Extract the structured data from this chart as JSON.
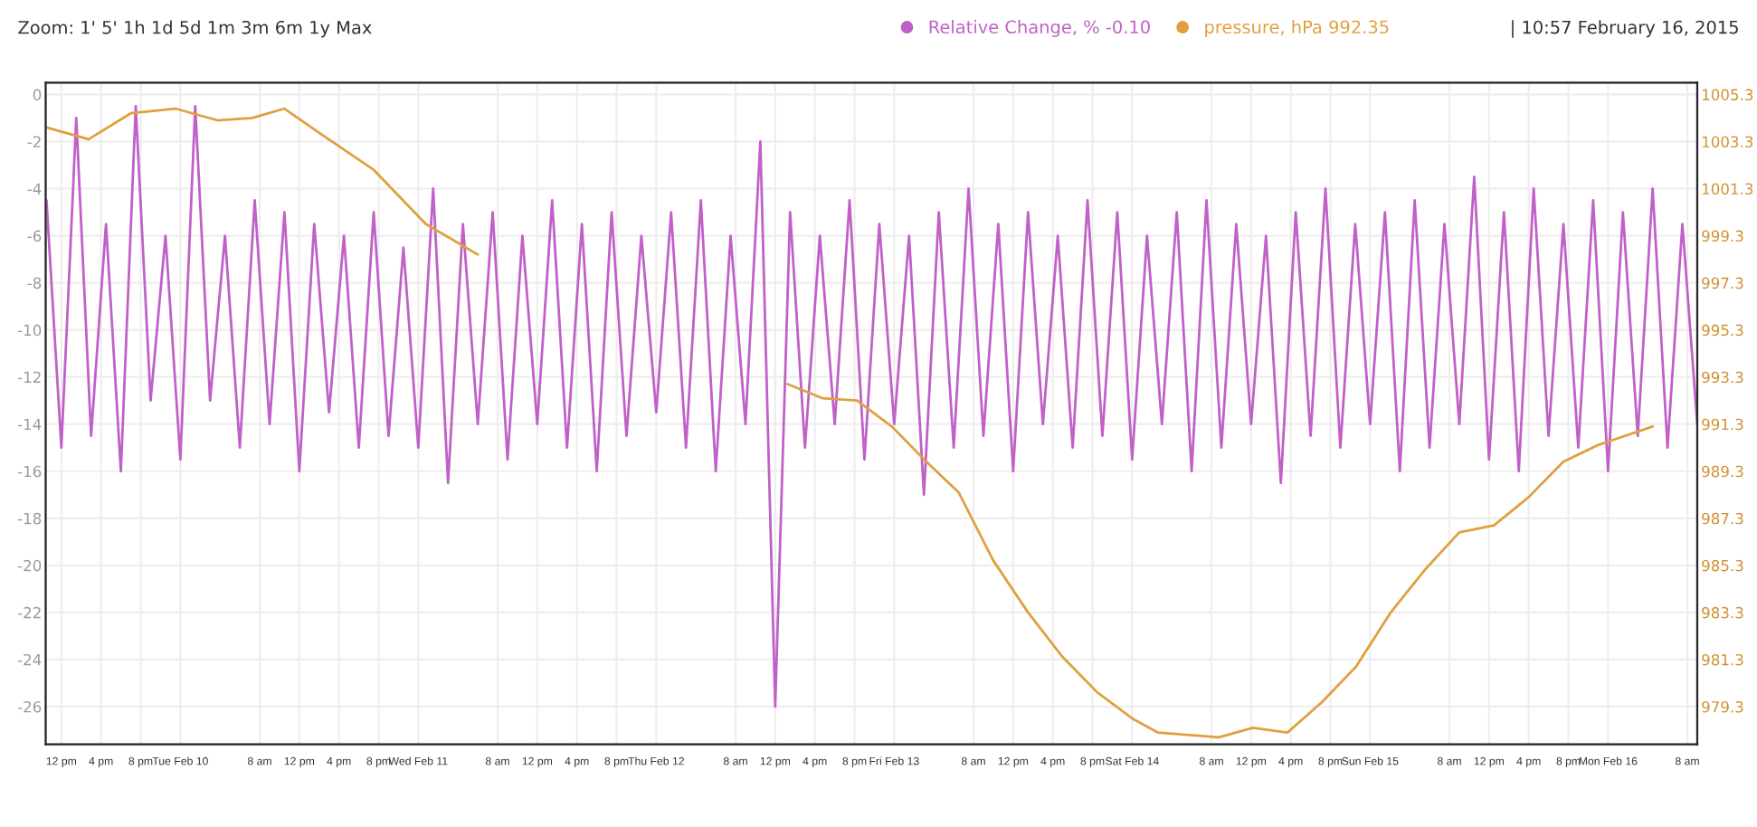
{
  "chart_data": {
    "type": "line",
    "annotations": [
      "Zoom: 1' 5' 1h 1d 5d 1m 3m 6m 1y Max",
      "| 10:57 February 16, 2015"
    ],
    "xlim": [
      "2015-02-09T10:25",
      "2015-02-16T09:00"
    ],
    "xticks": [
      {
        "value": "2015-02-09T12:00",
        "label": "12 pm"
      },
      {
        "value": "2015-02-09T16:00",
        "label": "4 pm"
      },
      {
        "value": "2015-02-09T20:00",
        "label": "8 pm"
      },
      {
        "value": "2015-02-10T00:00",
        "label": "Tue Feb 10"
      },
      {
        "value": "2015-02-10T08:00",
        "label": "8 am"
      },
      {
        "value": "2015-02-10T12:00",
        "label": "12 pm"
      },
      {
        "value": "2015-02-10T16:00",
        "label": "4 pm"
      },
      {
        "value": "2015-02-10T20:00",
        "label": "8 pm"
      },
      {
        "value": "2015-02-11T00:00",
        "label": "Wed Feb 11"
      },
      {
        "value": "2015-02-11T08:00",
        "label": "8 am"
      },
      {
        "value": "2015-02-11T12:00",
        "label": "12 pm"
      },
      {
        "value": "2015-02-11T16:00",
        "label": "4 pm"
      },
      {
        "value": "2015-02-11T20:00",
        "label": "8 pm"
      },
      {
        "value": "2015-02-12T00:00",
        "label": "Thu Feb 12"
      },
      {
        "value": "2015-02-12T08:00",
        "label": "8 am"
      },
      {
        "value": "2015-02-12T12:00",
        "label": "12 pm"
      },
      {
        "value": "2015-02-12T16:00",
        "label": "4 pm"
      },
      {
        "value": "2015-02-12T20:00",
        "label": "8 pm"
      },
      {
        "value": "2015-02-13T00:00",
        "label": "Fri Feb 13"
      },
      {
        "value": "2015-02-13T08:00",
        "label": "8 am"
      },
      {
        "value": "2015-02-13T12:00",
        "label": "12 pm"
      },
      {
        "value": "2015-02-13T16:00",
        "label": "4 pm"
      },
      {
        "value": "2015-02-13T20:00",
        "label": "8 pm"
      },
      {
        "value": "2015-02-14T00:00",
        "label": "Sat Feb 14"
      },
      {
        "value": "2015-02-14T08:00",
        "label": "8 am"
      },
      {
        "value": "2015-02-14T12:00",
        "label": "12 pm"
      },
      {
        "value": "2015-02-14T16:00",
        "label": "4 pm"
      },
      {
        "value": "2015-02-14T20:00",
        "label": "8 pm"
      },
      {
        "value": "2015-02-15T00:00",
        "label": "Sun Feb 15"
      },
      {
        "value": "2015-02-15T08:00",
        "label": "8 am"
      },
      {
        "value": "2015-02-15T12:00",
        "label": "12 pm"
      },
      {
        "value": "2015-02-15T16:00",
        "label": "4 pm"
      },
      {
        "value": "2015-02-15T20:00",
        "label": "8 pm"
      },
      {
        "value": "2015-02-16T00:00",
        "label": "Mon Feb 16"
      },
      {
        "value": "2015-02-16T08:00",
        "label": "8 am"
      }
    ],
    "ylim": [
      -27.6,
      0.5
    ],
    "yticks": [
      0,
      -2,
      -4,
      -6,
      -8,
      -10,
      -12,
      -14,
      -16,
      -18,
      -20,
      -22,
      -24,
      -26
    ],
    "y2lim": [
      977.7,
      1005.8
    ],
    "y2ticks": [
      979.3,
      981.3,
      983.3,
      985.3,
      987.3,
      989.3,
      991.3,
      993.3,
      995.3,
      997.3,
      999.3,
      1001.3,
      1003.3,
      1005.3
    ],
    "grid": true,
    "legend": "top right",
    "series": [
      {
        "name": "Relative Change, % -0.10",
        "color": "#c060c8",
        "x": [
          "2015-02-09T10:30",
          "2015-02-09T12:00",
          "2015-02-09T13:30",
          "2015-02-09T15:00",
          "2015-02-09T16:30",
          "2015-02-09T18:00",
          "2015-02-09T19:30",
          "2015-02-09T21:00",
          "2015-02-09T22:30",
          "2015-02-10T00:00",
          "2015-02-10T01:30",
          "2015-02-10T03:00",
          "2015-02-10T04:30",
          "2015-02-10T06:00",
          "2015-02-10T07:30",
          "2015-02-10T09:00",
          "2015-02-10T10:30",
          "2015-02-10T12:00",
          "2015-02-10T13:30",
          "2015-02-10T15:00",
          "2015-02-10T16:30",
          "2015-02-10T18:00",
          "2015-02-10T19:30",
          "2015-02-10T21:00",
          "2015-02-10T22:30",
          "2015-02-11T00:00",
          "2015-02-11T01:30",
          "2015-02-11T03:00",
          "2015-02-11T04:30",
          "2015-02-11T06:00",
          "2015-02-11T07:30",
          "2015-02-11T09:00",
          "2015-02-11T10:30",
          "2015-02-11T12:00",
          "2015-02-11T13:30",
          "2015-02-11T15:00",
          "2015-02-11T16:30",
          "2015-02-11T18:00",
          "2015-02-11T19:30",
          "2015-02-11T21:00",
          "2015-02-11T22:30",
          "2015-02-12T00:00",
          "2015-02-12T01:30",
          "2015-02-12T03:00",
          "2015-02-12T04:30",
          "2015-02-12T06:00",
          "2015-02-12T07:30",
          "2015-02-12T09:00",
          "2015-02-12T10:30",
          "2015-02-12T12:00",
          "2015-02-12T13:30",
          "2015-02-12T15:00",
          "2015-02-12T16:30",
          "2015-02-12T18:00",
          "2015-02-12T19:30",
          "2015-02-12T21:00",
          "2015-02-12T22:30",
          "2015-02-13T00:00",
          "2015-02-13T01:30",
          "2015-02-13T03:00",
          "2015-02-13T04:30",
          "2015-02-13T06:00",
          "2015-02-13T07:30",
          "2015-02-13T09:00",
          "2015-02-13T10:30",
          "2015-02-13T12:00",
          "2015-02-13T13:30",
          "2015-02-13T15:00",
          "2015-02-13T16:30",
          "2015-02-13T18:00",
          "2015-02-13T19:30",
          "2015-02-13T21:00",
          "2015-02-13T22:30",
          "2015-02-14T00:00",
          "2015-02-14T01:30",
          "2015-02-14T03:00",
          "2015-02-14T04:30",
          "2015-02-14T06:00",
          "2015-02-14T07:30",
          "2015-02-14T09:00",
          "2015-02-14T10:30",
          "2015-02-14T12:00",
          "2015-02-14T13:30",
          "2015-02-14T15:00",
          "2015-02-14T16:30",
          "2015-02-14T18:00",
          "2015-02-14T19:30",
          "2015-02-14T21:00",
          "2015-02-14T22:30",
          "2015-02-15T00:00",
          "2015-02-15T01:30",
          "2015-02-15T03:00",
          "2015-02-15T04:30",
          "2015-02-15T06:00",
          "2015-02-15T07:30",
          "2015-02-15T09:00",
          "2015-02-15T10:30",
          "2015-02-15T12:00",
          "2015-02-15T13:30",
          "2015-02-15T15:00",
          "2015-02-15T16:30",
          "2015-02-15T18:00",
          "2015-02-15T19:30",
          "2015-02-15T21:00",
          "2015-02-15T22:30",
          "2015-02-16T00:00",
          "2015-02-16T01:30",
          "2015-02-16T03:00",
          "2015-02-16T04:30",
          "2015-02-16T06:00",
          "2015-02-16T07:30",
          "2015-02-16T09:00"
        ],
        "values": [
          -4.5,
          -15,
          -1,
          -14.5,
          -5.5,
          -16,
          -0.5,
          -13,
          -6,
          -15.5,
          -0.5,
          -13,
          -6,
          -15,
          -4.5,
          -14,
          -5,
          -16,
          -5.5,
          -13.5,
          -6,
          -15,
          -5,
          -14.5,
          -6.5,
          -15,
          -4,
          -16.5,
          -5.5,
          -14,
          -5,
          -15.5,
          -6,
          -14,
          -4.5,
          -15,
          -5.5,
          -16,
          -5,
          -14.5,
          -6,
          -13.5,
          -5,
          -15,
          -4.5,
          -16,
          -6,
          -14,
          -2,
          -26,
          -5,
          -15,
          -6,
          -14,
          -4.5,
          -15.5,
          -5.5,
          -14,
          -6,
          -17,
          -5,
          -15,
          -4,
          -14.5,
          -5.5,
          -16,
          -5,
          -14,
          -6,
          -15,
          -4.5,
          -14.5,
          -5,
          -15.5,
          -6,
          -14,
          -5,
          -16,
          -4.5,
          -15,
          -5.5,
          -14,
          -6,
          -16.5,
          -5,
          -14.5,
          -4,
          -15,
          -5.5,
          -14,
          -5,
          -16,
          -4.5,
          -15,
          -5.5,
          -14,
          -3.5,
          -15.5,
          -5,
          -16,
          -4,
          -14.5,
          -5.5,
          -15,
          -4.5,
          -16,
          -5,
          -14.5,
          -4,
          -15,
          -5.5,
          -14
        ]
      },
      {
        "name": "pressure, hPa 992.35",
        "color": "#e0a040",
        "axis": "y2",
        "x": [
          "2015-02-09T10:30",
          "2015-02-09T14:45",
          "2015-02-09T19:00",
          "2015-02-09T23:30",
          "2015-02-10T03:45",
          "2015-02-10T07:15",
          "2015-02-10T10:30",
          "2015-02-10T14:15",
          "2015-02-10T19:30",
          "2015-02-11T00:45",
          "2015-02-11T06:00",
          "2015-02-11T11:15",
          "2015-02-12T13:15",
          "2015-02-12T16:45",
          "2015-02-12T20:15",
          "2015-02-12T23:45",
          "2015-02-13T03:15",
          "2015-02-13T06:30",
          "2015-02-13T10:00",
          "2015-02-13T13:30",
          "2015-02-13T17:00",
          "2015-02-13T20:30",
          "2015-02-14T00:00",
          "2015-02-14T02:35",
          "2015-02-14T08:45",
          "2015-02-14T12:10",
          "2015-02-14T15:40",
          "2015-02-14T19:10",
          "2015-02-14T22:35",
          "2015-02-15T02:05",
          "2015-02-15T05:30",
          "2015-02-15T09:00",
          "2015-02-15T12:30",
          "2015-02-15T16:00",
          "2015-02-15T19:30",
          "2015-02-15T22:55",
          "2015-02-16T04:30"
        ],
        "values": [
          1003.9,
          1003.4,
          1004.5,
          1004.7,
          1004.2,
          1004.3,
          1004.7,
          1003.6,
          1002.1,
          999.8,
          998.5,
          null,
          993.0,
          992.4,
          992.3,
          991.2,
          989.7,
          988.4,
          985.5,
          983.3,
          981.4,
          979.9,
          978.8,
          978.2,
          978.0,
          978.4,
          978.2,
          979.5,
          981.0,
          983.3,
          985.1,
          986.7,
          987.0,
          988.2,
          989.7,
          990.4,
          991.2
        ]
      }
    ]
  }
}
